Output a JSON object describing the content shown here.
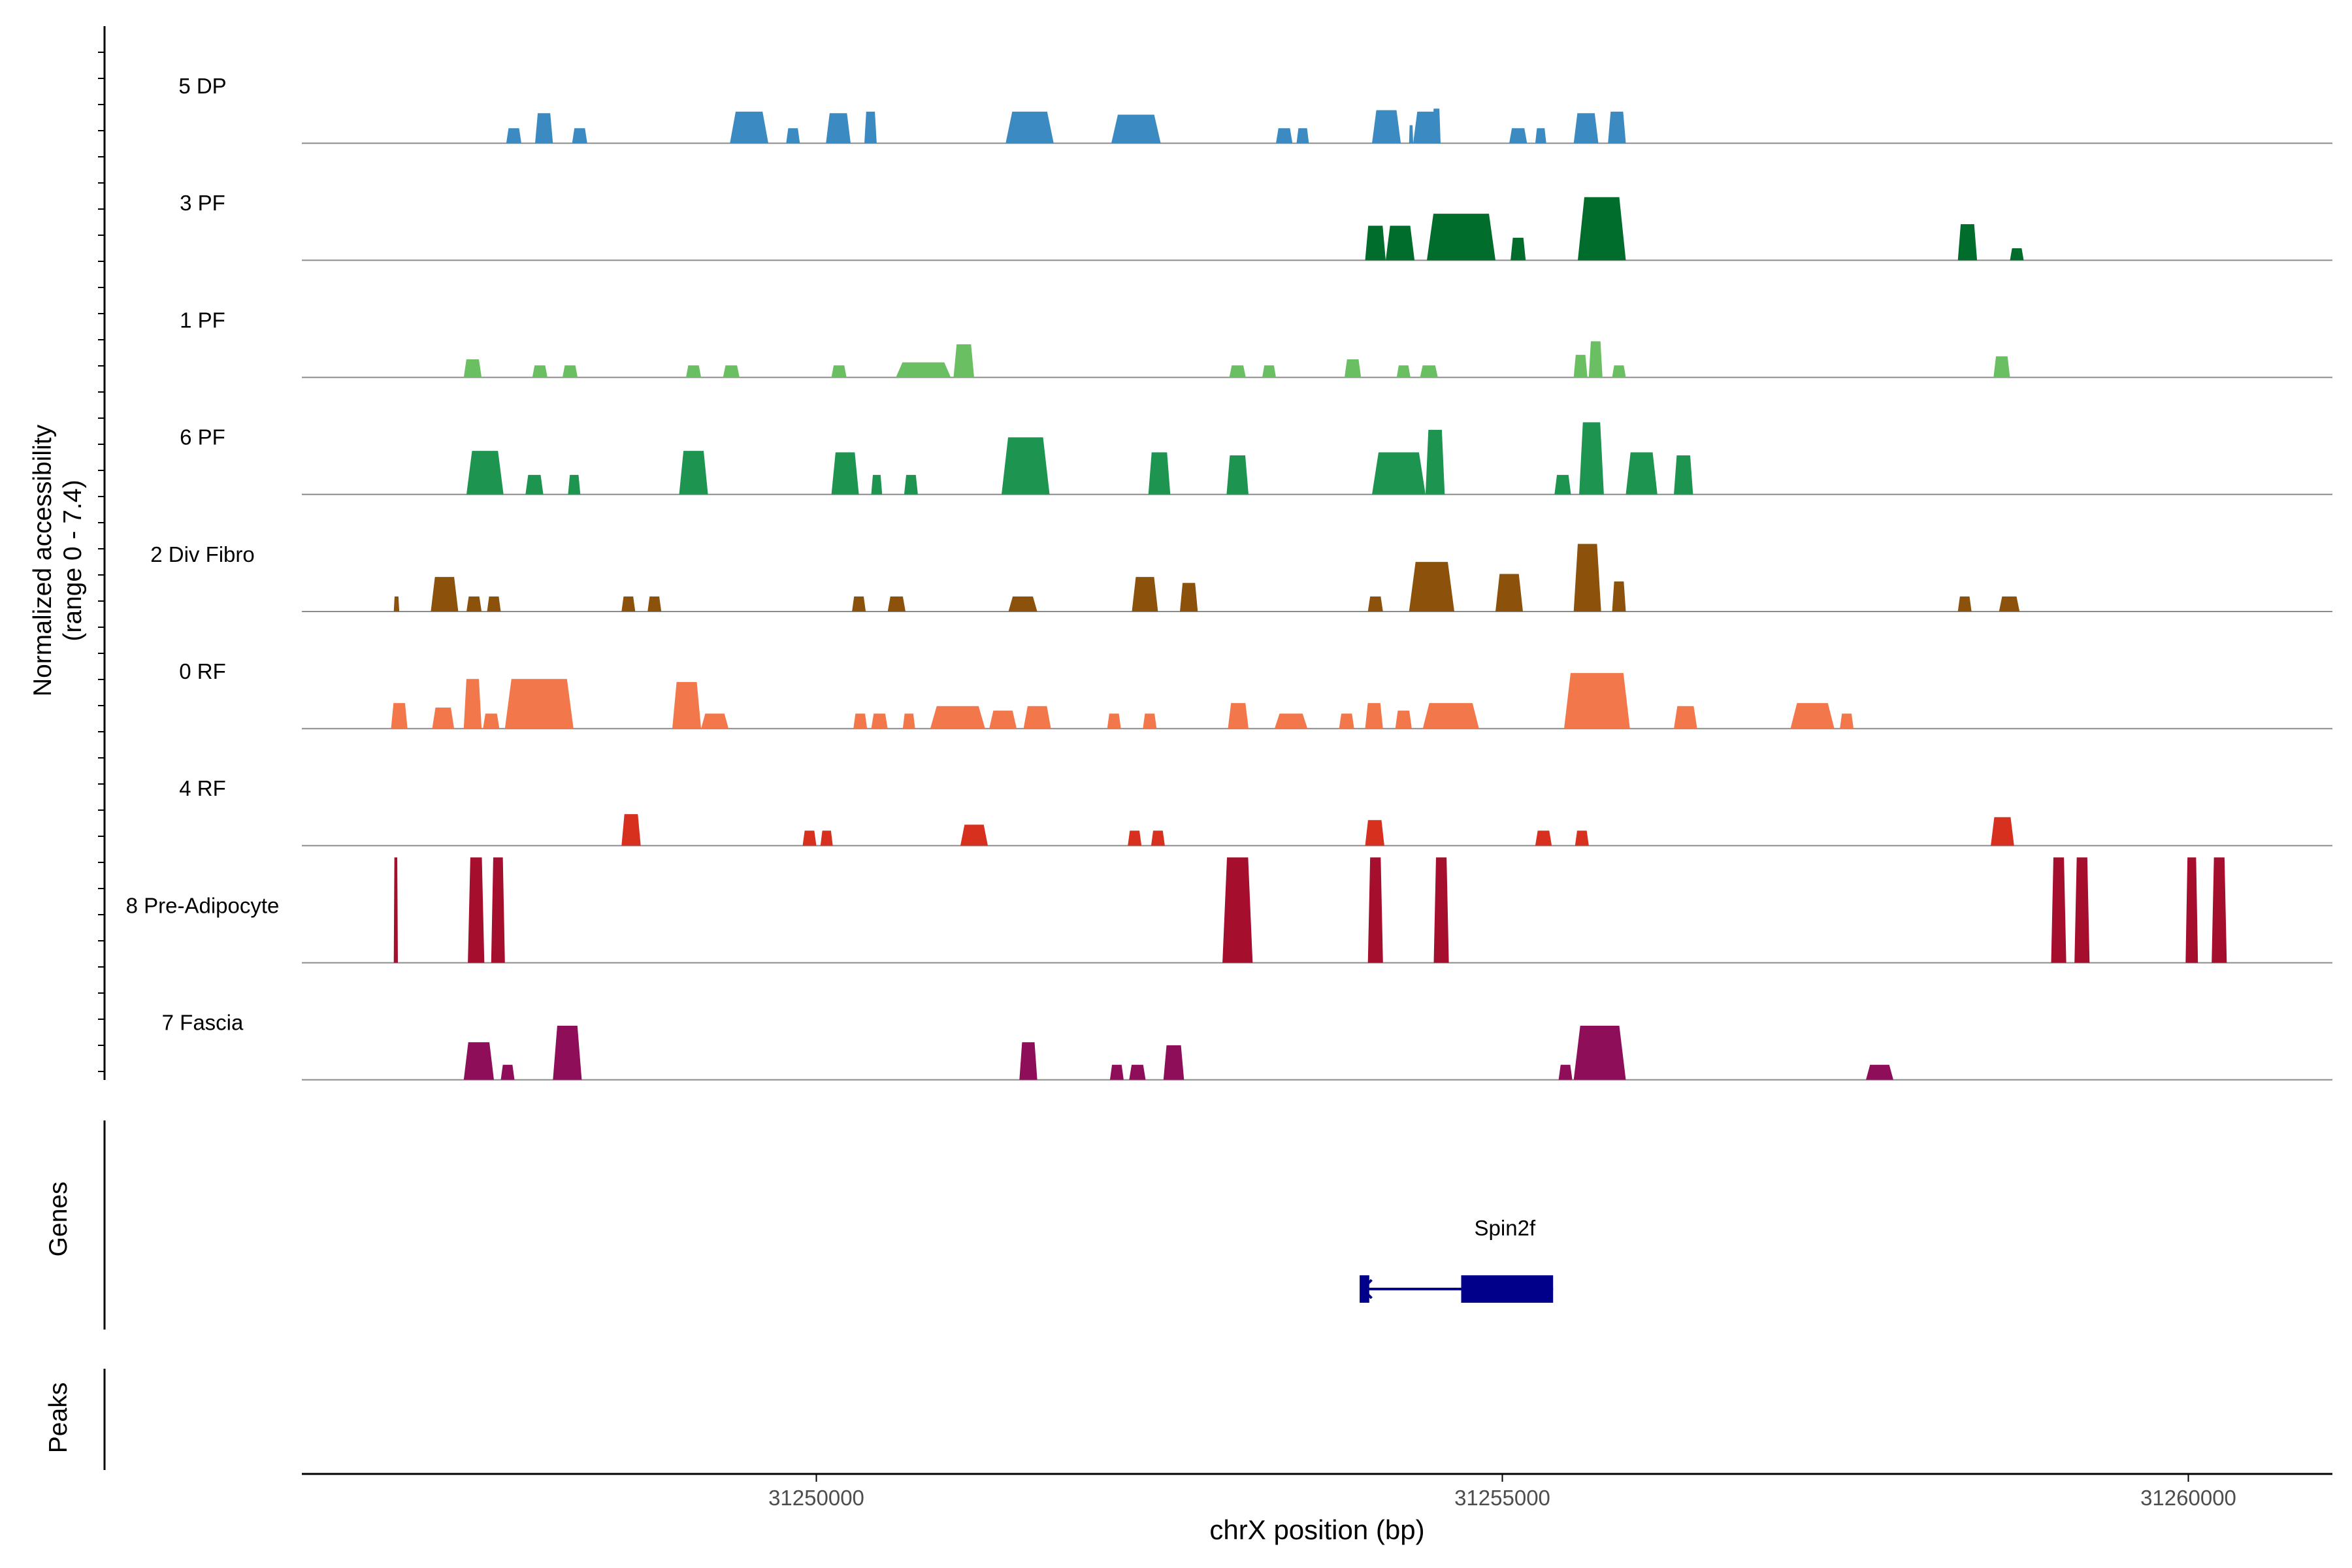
{
  "chart_data": {
    "type": "area",
    "title": "",
    "ylabel": [
      "Normalized accessibility",
      "(range 0 - 7.4)"
    ],
    "xlabel": "chrX position (bp)",
    "xlim": [
      31246250,
      31261050
    ],
    "ylim": [
      0,
      7.4
    ],
    "xticks": [
      31250000,
      31255000,
      31260000
    ],
    "xtick_labels": [
      "31250000",
      "31255000",
      "31260000"
    ],
    "panel_labels": {
      "genes": "Genes",
      "peaks": "Peaks"
    },
    "tracks": [
      {
        "name": "5 DP",
        "color": "#3B8BC2",
        "peaks": [
          [
            31247740,
            31247850,
            1.0
          ],
          [
            31247950,
            31248080,
            2.0
          ],
          [
            31248220,
            31248330,
            1.0
          ],
          [
            31249370,
            31249650,
            2.1
          ],
          [
            31249780,
            31249880,
            1.0
          ],
          [
            31250070,
            31250250,
            2.0
          ],
          [
            31250350,
            31250440,
            2.1
          ],
          [
            31251380,
            31251730,
            2.1
          ],
          [
            31252150,
            31252510,
            1.9
          ],
          [
            31253350,
            31253470,
            1.0
          ],
          [
            31253500,
            31253590,
            1.0
          ],
          [
            31254050,
            31254260,
            2.2
          ],
          [
            31254350,
            31254550,
            2.1
          ],
          [
            31254320,
            31254350,
            1.2
          ],
          [
            31254490,
            31254550,
            2.3
          ],
          [
            31255050,
            31255180,
            1.0
          ],
          [
            31255240,
            31255320,
            1.0
          ],
          [
            31255520,
            31255700,
            2.0
          ],
          [
            31255770,
            31255900,
            2.1
          ]
        ]
      },
      {
        "name": "3 PF",
        "color": "#006D2C",
        "peaks": [
          [
            31254000,
            31254150,
            2.3
          ],
          [
            31254150,
            31254360,
            2.3
          ],
          [
            31254450,
            31254950,
            3.1
          ],
          [
            31255060,
            31255170,
            1.5
          ],
          [
            31255550,
            31255900,
            4.2
          ],
          [
            31258320,
            31258460,
            2.4
          ],
          [
            31258700,
            31258800,
            0.8
          ]
        ]
      },
      {
        "name": "1 PF",
        "color": "#6ABF63",
        "peaks": [
          [
            31247430,
            31247560,
            1.2
          ],
          [
            31247930,
            31248040,
            0.8
          ],
          [
            31248150,
            31248260,
            0.8
          ],
          [
            31249050,
            31249160,
            0.8
          ],
          [
            31249320,
            31249440,
            0.8
          ],
          [
            31250110,
            31250220,
            0.8
          ],
          [
            31250580,
            31250980,
            1.0
          ],
          [
            31251000,
            31251150,
            2.2
          ],
          [
            31253010,
            31253130,
            0.8
          ],
          [
            31253250,
            31253350,
            0.8
          ],
          [
            31253850,
            31253970,
            1.2
          ],
          [
            31254230,
            31254330,
            0.8
          ],
          [
            31254400,
            31254530,
            0.8
          ],
          [
            31255520,
            31255620,
            1.5
          ],
          [
            31255630,
            31255730,
            2.4
          ],
          [
            31255800,
            31255900,
            0.8
          ],
          [
            31258580,
            31258700,
            1.4
          ]
        ]
      },
      {
        "name": "6 PF",
        "color": "#1E9451",
        "peaks": [
          [
            31247450,
            31247720,
            2.9
          ],
          [
            31247880,
            31248010,
            1.3
          ],
          [
            31248190,
            31248280,
            1.3
          ],
          [
            31249000,
            31249210,
            2.9
          ],
          [
            31250110,
            31250310,
            2.8
          ],
          [
            31250400,
            31250480,
            1.3
          ],
          [
            31250640,
            31250740,
            1.3
          ],
          [
            31251350,
            31251700,
            3.8
          ],
          [
            31252420,
            31252580,
            2.8
          ],
          [
            31252990,
            31253150,
            2.6
          ],
          [
            31254050,
            31254440,
            2.8
          ],
          [
            31254440,
            31254580,
            4.3
          ],
          [
            31255380,
            31255500,
            1.3
          ],
          [
            31255560,
            31255740,
            4.8
          ],
          [
            31255900,
            31256130,
            2.8
          ],
          [
            31256250,
            31256390,
            2.6
          ]
        ]
      },
      {
        "name": "2 Div Fibro",
        "color": "#8C510A",
        "peaks": [
          [
            31246920,
            31246960,
            1.0
          ],
          [
            31247190,
            31247390,
            2.3
          ],
          [
            31247450,
            31247560,
            1.0
          ],
          [
            31247600,
            31247700,
            1.0
          ],
          [
            31248580,
            31248680,
            1.0
          ],
          [
            31248770,
            31248870,
            1.0
          ],
          [
            31250260,
            31250360,
            1.0
          ],
          [
            31250520,
            31250650,
            1.0
          ],
          [
            31251400,
            31251610,
            1.0
          ],
          [
            31252300,
            31252490,
            2.3
          ],
          [
            31252650,
            31252780,
            1.9
          ],
          [
            31254020,
            31254130,
            1.0
          ],
          [
            31254320,
            31254650,
            3.3
          ],
          [
            31254950,
            31255150,
            2.5
          ],
          [
            31255520,
            31255720,
            4.5
          ],
          [
            31255800,
            31255900,
            2.0
          ],
          [
            31258320,
            31258420,
            1.0
          ],
          [
            31258620,
            31258770,
            1.0
          ]
        ]
      },
      {
        "name": "0 RF",
        "color": "#F2784B",
        "peaks": [
          [
            31246900,
            31247020,
            1.7
          ],
          [
            31247200,
            31247360,
            1.4
          ],
          [
            31247430,
            31247560,
            3.3
          ],
          [
            31247570,
            31247690,
            1.0
          ],
          [
            31247730,
            31248230,
            3.3
          ],
          [
            31248950,
            31249160,
            3.1
          ],
          [
            31249160,
            31249360,
            1.0
          ],
          [
            31250270,
            31250370,
            1.0
          ],
          [
            31250400,
            31250520,
            1.0
          ],
          [
            31250630,
            31250720,
            1.0
          ],
          [
            31250830,
            31251230,
            1.5
          ],
          [
            31251260,
            31251460,
            1.2
          ],
          [
            31251510,
            31251710,
            1.5
          ],
          [
            31252120,
            31252220,
            1.0
          ],
          [
            31252380,
            31252480,
            1.0
          ],
          [
            31253000,
            31253150,
            1.7
          ],
          [
            31253340,
            31253580,
            1.0
          ],
          [
            31253810,
            31253920,
            1.0
          ],
          [
            31254000,
            31254130,
            1.7
          ],
          [
            31254220,
            31254340,
            1.2
          ],
          [
            31254420,
            31254830,
            1.7
          ],
          [
            31255450,
            31255930,
            3.7
          ],
          [
            31256250,
            31256420,
            1.5
          ],
          [
            31257100,
            31257420,
            1.7
          ],
          [
            31257460,
            31257560,
            1.0
          ]
        ]
      },
      {
        "name": "4 RF",
        "color": "#D7301F",
        "peaks": [
          [
            31248580,
            31248720,
            2.1
          ],
          [
            31249900,
            31250000,
            1.0
          ],
          [
            31250030,
            31250120,
            1.0
          ],
          [
            31251050,
            31251250,
            1.4
          ],
          [
            31252270,
            31252370,
            1.0
          ],
          [
            31252440,
            31252540,
            1.0
          ],
          [
            31254000,
            31254140,
            1.7
          ],
          [
            31255240,
            31255360,
            1.0
          ],
          [
            31255530,
            31255630,
            1.0
          ],
          [
            31258560,
            31258730,
            1.9
          ]
        ]
      },
      {
        "name": "8 Pre-Adipocyte",
        "color": "#A50F2D",
        "clip_at_top": true,
        "peaks": [
          [
            31246920,
            31246950,
            7.4
          ],
          [
            31247460,
            31247580,
            7.4
          ],
          [
            31247630,
            31247730,
            7.4
          ],
          [
            31252960,
            31253180,
            7.4
          ],
          [
            31254020,
            31254130,
            7.4
          ],
          [
            31254500,
            31254610,
            7.4
          ],
          [
            31259000,
            31259110,
            7.4
          ],
          [
            31259170,
            31259280,
            7.4
          ],
          [
            31259980,
            31260070,
            7.4
          ],
          [
            31260170,
            31260280,
            7.4
          ]
        ]
      },
      {
        "name": "7 Fascia",
        "color": "#8E0E5A",
        "peaks": [
          [
            31247430,
            31247650,
            2.5
          ],
          [
            31247700,
            31247800,
            1.0
          ],
          [
            31248080,
            31248290,
            3.6
          ],
          [
            31251480,
            31251610,
            2.5
          ],
          [
            31252140,
            31252240,
            1.0
          ],
          [
            31252280,
            31252400,
            1.0
          ],
          [
            31252530,
            31252680,
            2.3
          ],
          [
            31255410,
            31255510,
            1.0
          ],
          [
            31255520,
            31255900,
            3.6
          ],
          [
            31257650,
            31257850,
            1.0
          ]
        ]
      }
    ],
    "genes": [
      {
        "name": "Spin2f",
        "strand": "-",
        "start": 31254000,
        "end": 31255370,
        "exons": [
          [
            31253960,
            31254030
          ],
          [
            31254700,
            31255370
          ]
        ],
        "color": "#00008B"
      }
    ],
    "peaks_track": []
  }
}
